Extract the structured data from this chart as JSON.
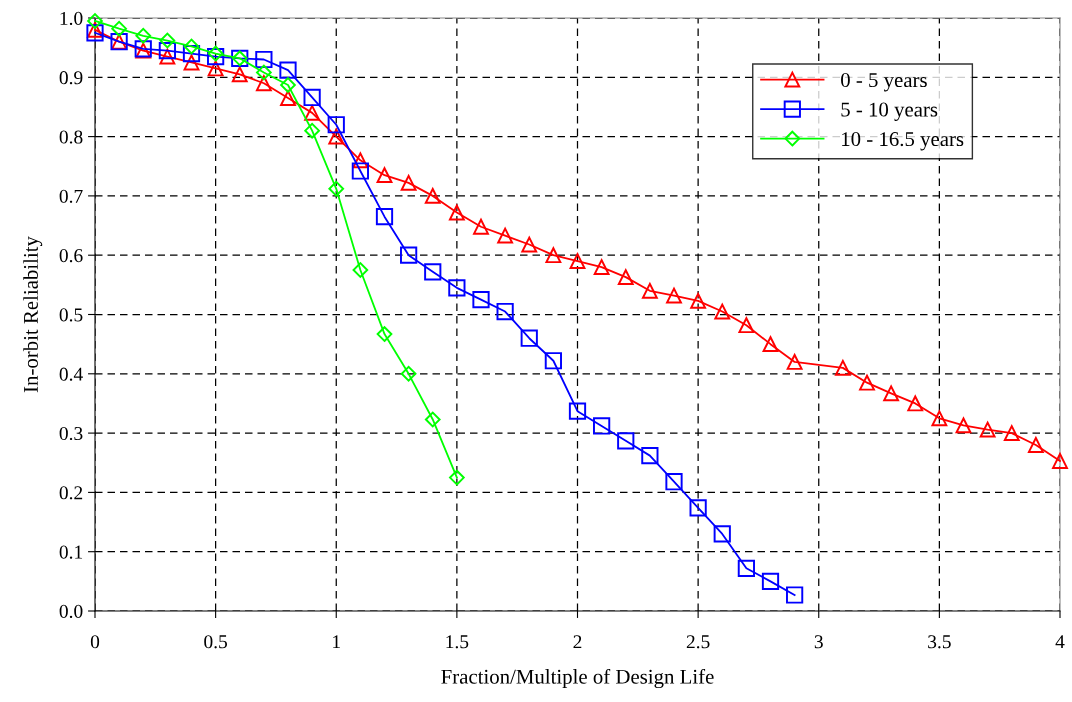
{
  "chart_data": {
    "type": "line",
    "xlabel": "Fraction/Multiple of Design Life",
    "ylabel": "In-orbit Reliability",
    "xlim": [
      0,
      4
    ],
    "ylim": [
      0,
      1
    ],
    "xticks": [
      0,
      0.5,
      1,
      1.5,
      2,
      2.5,
      3,
      3.5,
      4
    ],
    "yticks": [
      {
        "value": 0,
        "label": "0.0"
      },
      {
        "value": 0.1,
        "label": "0.1"
      },
      {
        "value": 0.2,
        "label": "0.2"
      },
      {
        "value": 0.3,
        "label": "0.3"
      },
      {
        "value": 0.4,
        "label": "0.4"
      },
      {
        "value": 0.5,
        "label": "0.5"
      },
      {
        "value": 0.6,
        "label": "0.6"
      },
      {
        "value": 0.7,
        "label": "0.7"
      },
      {
        "value": 0.8,
        "label": "0.8"
      },
      {
        "value": 0.9,
        "label": "0.9"
      },
      {
        "value": 1,
        "label": "1.0"
      }
    ],
    "grid": true,
    "legend": "top right",
    "line_style": "solid",
    "series": [
      {
        "name": "0 - 5 years",
        "color": "#ff0000",
        "marker": "triangle",
        "x": [
          0,
          0.1,
          0.2,
          0.3,
          0.4,
          0.5,
          0.6,
          0.7,
          0.8,
          0.9,
          1.0,
          1.1,
          1.2,
          1.3,
          1.4,
          1.5,
          1.6,
          1.7,
          1.8,
          1.9,
          2.0,
          2.1,
          2.2,
          2.3,
          2.4,
          2.5,
          2.6,
          2.7,
          2.8,
          2.9,
          3.1,
          3.2,
          3.3,
          3.4,
          3.5,
          3.6,
          3.7,
          3.8,
          3.9,
          4.0
        ],
        "values": [
          0.98,
          0.96,
          0.945,
          0.935,
          0.925,
          0.915,
          0.905,
          0.89,
          0.865,
          0.84,
          0.8,
          0.76,
          0.735,
          0.722,
          0.7,
          0.672,
          0.648,
          0.633,
          0.618,
          0.6,
          0.59,
          0.58,
          0.563,
          0.54,
          0.532,
          0.523,
          0.505,
          0.482,
          0.45,
          0.42,
          0.41,
          0.385,
          0.367,
          0.35,
          0.325,
          0.313,
          0.306,
          0.3,
          0.28,
          0.253
        ]
      },
      {
        "name": "5 - 10 years",
        "color": "#0000ff",
        "marker": "square",
        "x": [
          0,
          0.1,
          0.2,
          0.3,
          0.4,
          0.5,
          0.6,
          0.7,
          0.8,
          0.9,
          1.0,
          1.1,
          1.2,
          1.3,
          1.4,
          1.5,
          1.6,
          1.7,
          1.8,
          1.9,
          2.0,
          2.1,
          2.2,
          2.3,
          2.4,
          2.5,
          2.6,
          2.7,
          2.8,
          2.9
        ],
        "values": [
          0.975,
          0.96,
          0.948,
          0.945,
          0.94,
          0.935,
          0.932,
          0.93,
          0.912,
          0.866,
          0.82,
          0.742,
          0.665,
          0.6,
          0.572,
          0.545,
          0.525,
          0.505,
          0.46,
          0.422,
          0.337,
          0.312,
          0.287,
          0.262,
          0.218,
          0.174,
          0.13,
          0.072,
          0.05,
          0.027
        ]
      },
      {
        "name": "10 - 16.5 years",
        "color": "#00ff00",
        "marker": "diamond",
        "x": [
          0,
          0.1,
          0.2,
          0.3,
          0.4,
          0.5,
          0.6,
          0.7,
          0.8,
          0.9,
          1.0,
          1.1,
          1.2,
          1.3,
          1.4,
          1.5
        ],
        "values": [
          0.995,
          0.982,
          0.97,
          0.962,
          0.952,
          0.94,
          0.932,
          0.908,
          0.887,
          0.81,
          0.712,
          0.575,
          0.467,
          0.4,
          0.323,
          0.225
        ]
      }
    ]
  }
}
